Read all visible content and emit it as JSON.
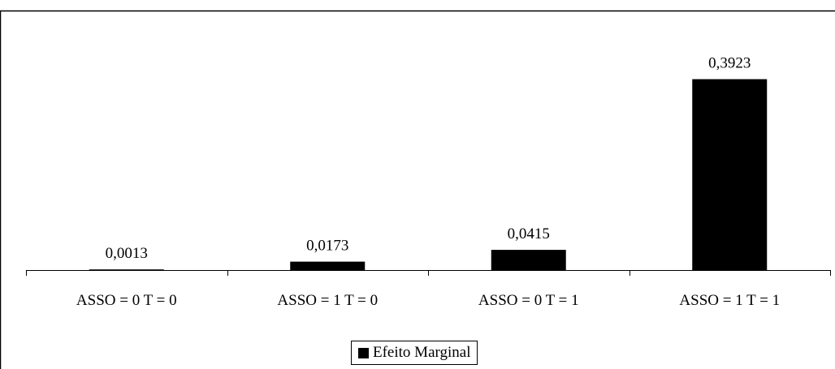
{
  "chart_data": {
    "type": "bar",
    "categories": [
      "ASSO = 0 T = 0",
      "ASSO = 1 T = 0",
      "ASSO = 0 T = 1",
      "ASSO = 1 T = 1"
    ],
    "series": [
      {
        "name": "Efeito Marginal",
        "values": [
          0.0013,
          0.0173,
          0.0415,
          0.3923
        ],
        "data_labels": [
          "0,0013",
          "0,0173",
          "0,0415",
          "0,3923"
        ],
        "color": "#000000"
      }
    ],
    "title": "",
    "xlabel": "",
    "ylabel": "",
    "ylim": [
      0,
      0.45
    ],
    "grid": false,
    "legend_position": "bottom"
  }
}
